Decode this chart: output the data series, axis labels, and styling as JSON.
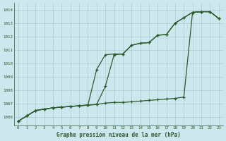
{
  "xlabel": "Graphe pression niveau de la mer (hPa)",
  "xlim": [
    -0.5,
    23.5
  ],
  "ylim": [
    1005.4,
    1014.5
  ],
  "yticks": [
    1006,
    1007,
    1008,
    1009,
    1010,
    1011,
    1012,
    1013,
    1014
  ],
  "xticks": [
    0,
    1,
    2,
    3,
    4,
    5,
    6,
    7,
    8,
    9,
    10,
    11,
    12,
    13,
    14,
    15,
    16,
    17,
    18,
    19,
    20,
    21,
    22,
    23
  ],
  "bg_color": "#cce8ee",
  "grid_color": "#aacccc",
  "line_color": "#2d5a2d",
  "line1": [
    1005.7,
    1006.1,
    1006.5,
    1006.6,
    1006.7,
    1006.75,
    1006.8,
    1006.85,
    1006.9,
    1006.95,
    1007.05,
    1007.1,
    1007.1,
    1007.15,
    1007.2,
    1007.25,
    1007.3,
    1007.35,
    1007.4,
    1007.5,
    1013.8,
    1013.85,
    1013.85,
    1013.35
  ],
  "line2": [
    1005.7,
    1006.1,
    1006.5,
    1006.6,
    1006.7,
    1006.75,
    1006.8,
    1006.85,
    1006.9,
    1009.55,
    1010.65,
    1010.7,
    1010.7,
    1011.35,
    1011.5,
    1011.55,
    1012.1,
    1012.15,
    1013.0,
    1013.4,
    1013.8,
    1013.85,
    1013.85,
    1013.35
  ],
  "line3": [
    1005.7,
    1006.1,
    1006.5,
    1006.6,
    1006.7,
    1006.75,
    1006.8,
    1006.85,
    1006.9,
    1006.95,
    1008.3,
    1010.65,
    1010.7,
    1011.35,
    1011.5,
    1011.55,
    1012.1,
    1012.15,
    1013.0,
    1013.4,
    1013.8,
    1013.85,
    1013.85,
    1013.35
  ]
}
